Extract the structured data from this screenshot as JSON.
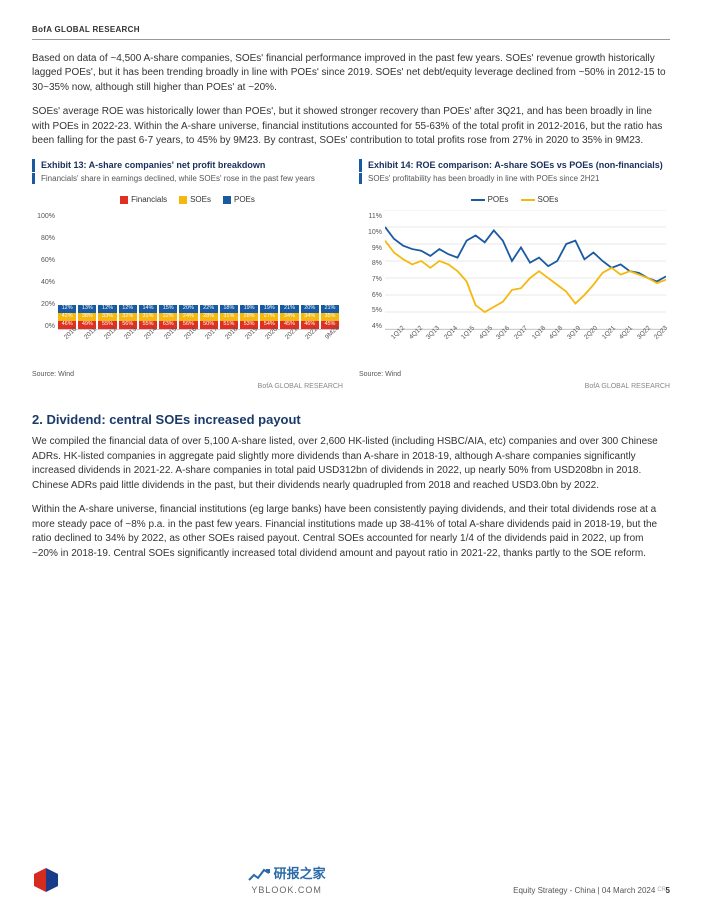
{
  "header": "BofA GLOBAL RESEARCH",
  "para1": "Based on data of ~4,500 A-share companies, SOEs' financial performance improved in the past few years. SOEs' revenue growth historically lagged POEs', but it has been trending broadly in line with POEs' since 2019. SOEs' net debt/equity leverage declined from ~50% in 2012-15 to 30~35% now, although still higher than POEs' at ~20%.",
  "para2": "SOEs' average ROE was historically lower than POEs', but it showed stronger recovery than POEs' after 3Q21, and has been broadly in line with POEs in 2022-23. Within the A-share universe, financial institutions accounted for 55-63% of the total profit in 2012-2016, but the ratio has been falling for the past 6-7 years, to 45% by 9M23. By contrast, SOEs' contribution to total profits rose from 27% in 2020 to 35% in 9M23.",
  "ex13": {
    "title": "Exhibit 13: A-share companies' net profit breakdown",
    "subtitle": "Financials' share in earnings declined, while SOEs' rose in the past few years",
    "legend": [
      "Financials",
      "SOEs",
      "POEs"
    ],
    "colors": {
      "fin": "#e03024",
      "soe": "#f4b80f",
      "poe": "#1a5aa0"
    },
    "ylabels": [
      "100%",
      "80%",
      "60%",
      "40%",
      "20%",
      "0%"
    ],
    "xlabels": [
      "2010",
      "2011",
      "2012",
      "2013",
      "2014",
      "2015",
      "2016",
      "2017",
      "2018",
      "2019",
      "2020",
      "2021",
      "2022",
      "9M23"
    ],
    "data": [
      {
        "fin": 46,
        "soe": 42,
        "poe": 12
      },
      {
        "fin": 49,
        "soe": 38,
        "poe": 13
      },
      {
        "fin": 55,
        "soe": 33,
        "poe": 12
      },
      {
        "fin": 56,
        "soe": 32,
        "poe": 12
      },
      {
        "fin": 55,
        "soe": 31,
        "poe": 14
      },
      {
        "fin": 63,
        "soe": 22,
        "poe": 15
      },
      {
        "fin": 56,
        "soe": 24,
        "poe": 20
      },
      {
        "fin": 50,
        "soe": 28,
        "poe": 22
      },
      {
        "fin": 51,
        "soe": 31,
        "poe": 18
      },
      {
        "fin": 53,
        "soe": 28,
        "poe": 19
      },
      {
        "fin": 54,
        "soe": 27,
        "poe": 19
      },
      {
        "fin": 45,
        "soe": 34,
        "poe": 21
      },
      {
        "fin": 46,
        "soe": 34,
        "poe": 20
      },
      {
        "fin": 45,
        "soe": 35,
        "poe": 21
      }
    ],
    "source": "Source: Wind",
    "brand": "BofA GLOBAL RESEARCH"
  },
  "ex14": {
    "title": "Exhibit 14: ROE comparison: A-share SOEs vs POEs (non-financials)",
    "subtitle": "SOEs' profitability has been broadly in line with POEs since 2H21",
    "legend": [
      "POEs",
      "SOEs"
    ],
    "colors": {
      "poe": "#1a5aa0",
      "soe": "#f4b80f"
    },
    "ylabels": [
      "11%",
      "10%",
      "9%",
      "8%",
      "7%",
      "6%",
      "5%",
      "4%"
    ],
    "ylim": [
      4,
      11
    ],
    "xlabels": [
      "1Q12",
      "4Q12",
      "3Q13",
      "2Q14",
      "1Q15",
      "4Q15",
      "3Q16",
      "2Q17",
      "1Q18",
      "4Q18",
      "3Q19",
      "2Q20",
      "1Q21",
      "4Q21",
      "3Q22",
      "2Q23"
    ],
    "poe": [
      10.0,
      9.3,
      8.9,
      8.7,
      8.6,
      8.3,
      8.7,
      8.4,
      8.2,
      9.2,
      9.5,
      9.1,
      9.8,
      9.2,
      8.0,
      8.8,
      7.9,
      8.2,
      7.7,
      8.0,
      9.0,
      9.2,
      8.1,
      8.5,
      8.0,
      7.6,
      7.8,
      7.4,
      7.3,
      7.0,
      6.8,
      7.1
    ],
    "soe": [
      9.2,
      8.5,
      8.1,
      7.8,
      8.0,
      7.6,
      8.0,
      7.8,
      7.4,
      6.8,
      5.4,
      5.0,
      5.3,
      5.6,
      6.3,
      6.4,
      7.0,
      7.4,
      7.0,
      6.6,
      6.2,
      5.5,
      6.0,
      6.6,
      7.3,
      7.6,
      7.2,
      7.4,
      7.2,
      7.0,
      6.7,
      6.9
    ],
    "source": "Source: Wind",
    "brand": "BofA GLOBAL RESEARCH"
  },
  "h2": "2.  Dividend: central SOEs increased payout",
  "para3": "We compiled the financial data of over 5,100 A-share listed, over 2,600 HK-listed (including HSBC/AIA, etc) companies and over 300 Chinese ADRs. HK-listed companies in aggregate paid slightly more dividends than A-share in 2018-19, although A-share companies significantly increased dividends in 2021-22. A-share companies in total paid USD312bn of dividends in 2022, up nearly 50% from USD208bn in 2018. Chinese ADRs paid little dividends in the past, but their dividends nearly quadrupled from 2018 and reached USD3.0bn by 2022.",
  "para4": "Within the A-share universe, financial institutions (eg large banks) have been consistently paying dividends, and their total dividends rose at a more steady pace of ~8% p.a. in the past few years. Financial institutions made up 38-41% of total A-share dividends paid in 2018-19, but the ratio declined to 34% by 2022, as other SOEs raised payout. Central SOEs accounted for nearly 1/4 of the dividends paid in 2022, up from ~20% in 2018-19. Central SOEs significantly increased total dividend amount and payout ratio in 2021-22, thanks partly to the SOE reform.",
  "footer": {
    "mid_logo": "研报之家",
    "mid_url": "YBLOOK.COM",
    "right": "Equity Strategy - China | 04 March 2024",
    "page": "5",
    "cr": "CR"
  }
}
